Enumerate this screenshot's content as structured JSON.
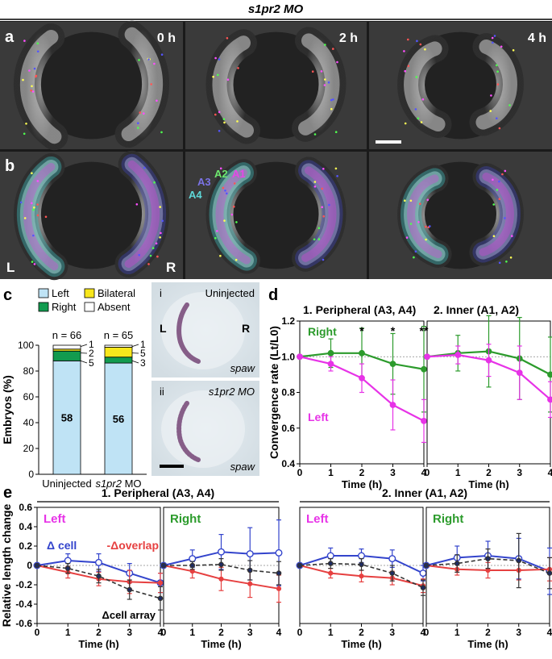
{
  "figure_title": "s1pr2 MO",
  "panel_labels": [
    "a",
    "b",
    "c",
    "d",
    "e"
  ],
  "micrographs": {
    "time_labels": [
      "0 h",
      "2 h",
      "4 h"
    ],
    "cell_group_labels": [
      "A3",
      "A2",
      "A1",
      "A4"
    ],
    "side_labels": [
      "L",
      "R"
    ]
  },
  "panel_c_legend": [
    "Left",
    "Bilateral",
    "Right",
    "Absent"
  ],
  "panel_c_insets": {
    "top_label": "i",
    "top_condition": "Uninjected",
    "bottom_label": "ii",
    "bottom_condition": "s1pr2 MO",
    "gene": "spaw",
    "side_left": "L",
    "side_right": "R"
  },
  "colors": {
    "left": "#e733e7",
    "right": "#2c9b2c",
    "delta_cell": "#3344cc",
    "delta_overlap": "#e64040",
    "delta_cell_array": "#333333",
    "bar_left": "#bfe3f5",
    "bar_right": "#129b4f",
    "bar_bilateral": "#f8e71c",
    "bar_absent": "#ffffff"
  },
  "chart_data": [
    {
      "id": "c",
      "type": "bar",
      "categories": [
        "Uninjected",
        "s1pr2 MO"
      ],
      "n_labels": [
        "n = 66",
        "n = 65"
      ],
      "ylabel": "Embryos (%)",
      "ylim": [
        0,
        100
      ],
      "yticks": [
        "0",
        "20",
        "40",
        "60",
        "80",
        "100"
      ],
      "series": [
        {
          "name": "Left",
          "counts": [
            58,
            56
          ],
          "values": [
            87.9,
            86.2
          ]
        },
        {
          "name": "Right",
          "counts": [
            5,
            3
          ],
          "values": [
            7.6,
            4.6
          ]
        },
        {
          "name": "Bilateral",
          "counts": [
            1,
            5
          ],
          "values": [
            1.5,
            7.7
          ]
        },
        {
          "name": "Absent",
          "counts": [
            2,
            1
          ],
          "values": [
            3.0,
            1.5
          ]
        }
      ],
      "annotations": [
        [
          "1",
          "2",
          "5"
        ],
        [
          "1",
          "5",
          "3"
        ]
      ]
    },
    {
      "id": "d",
      "type": "line",
      "ylabel": "Convergence rate (Lt/L0)",
      "xlabel": "Time (h)",
      "ylim": [
        0.4,
        1.2
      ],
      "yticks": [
        "0.4",
        "0.6",
        "0.8",
        "1.0",
        "1.2"
      ],
      "xticks": [
        "0",
        "1",
        "2",
        "3",
        "4"
      ],
      "subplots": [
        {
          "title": "1. Peripheral (A3, A4)",
          "x": [
            0,
            1,
            2,
            3,
            4
          ],
          "series": [
            {
              "name": "Right",
              "values": [
                1.0,
                1.02,
                1.02,
                0.96,
                0.93
              ],
              "err": [
                0,
                0.08,
                0.14,
                0.17,
                0.24
              ]
            },
            {
              "name": "Left",
              "values": [
                1.0,
                0.96,
                0.88,
                0.73,
                0.64
              ],
              "err": [
                0,
                0.04,
                0.08,
                0.14,
                0.12
              ]
            }
          ],
          "significance": [
            "",
            "",
            "*",
            "*",
            "**"
          ]
        },
        {
          "title": "2. Inner (A1, A2)",
          "x": [
            0,
            1,
            2,
            3,
            4
          ],
          "series": [
            {
              "name": "Right",
              "values": [
                1.0,
                1.02,
                1.03,
                0.99,
                0.9
              ],
              "err": [
                0,
                0.1,
                0.2,
                0.23,
                0.21
              ]
            },
            {
              "name": "Left",
              "values": [
                1.0,
                1.01,
                0.98,
                0.91,
                0.76
              ],
              "err": [
                0,
                0.05,
                0.09,
                0.15,
                0.1
              ]
            }
          ]
        }
      ]
    },
    {
      "id": "e",
      "type": "line",
      "ylabel": "Relative length change",
      "xlabel": "Time (h)",
      "ylim": [
        -0.6,
        0.6
      ],
      "yticks": [
        "-0.6",
        "-0.4",
        "-0.2",
        "0",
        "0.2",
        "0.4",
        "0.6"
      ],
      "xticks": [
        "0",
        "1",
        "2",
        "3",
        "4"
      ],
      "groups": [
        "1. Peripheral (A3, A4)",
        "2. Inner (A1, A2)"
      ],
      "series_names": [
        "Δ cell",
        "-Δoverlap",
        "Δcell array"
      ],
      "subplots": [
        {
          "label": "Left",
          "side": "left",
          "x": [
            0,
            1,
            2,
            3,
            4
          ],
          "series": [
            {
              "name": "Δ cell",
              "values": [
                0,
                0.05,
                0.03,
                -0.08,
                -0.18
              ],
              "err": [
                0,
                0.07,
                0.09,
                0.1,
                0.1
              ]
            },
            {
              "name": "-Δoverlap",
              "values": [
                0,
                -0.07,
                -0.14,
                -0.17,
                -0.18
              ],
              "err": [
                0,
                0.06,
                0.07,
                0.12,
                0.1
              ]
            },
            {
              "name": "Δcell array",
              "values": [
                0,
                -0.03,
                -0.11,
                -0.25,
                -0.34
              ],
              "err": [
                0,
                0.05,
                0.07,
                0.1,
                0.12
              ]
            }
          ]
        },
        {
          "label": "Right",
          "side": "right",
          "x": [
            0,
            1,
            2,
            3,
            4
          ],
          "series": [
            {
              "name": "Δ cell",
              "values": [
                0,
                0.07,
                0.14,
                0.12,
                0.13
              ],
              "err": [
                0,
                0.09,
                0.18,
                0.27,
                0.34
              ]
            },
            {
              "name": "-Δoverlap",
              "values": [
                0,
                -0.06,
                -0.14,
                -0.19,
                -0.24
              ],
              "err": [
                0,
                0.07,
                0.12,
                0.14,
                0.14
              ]
            },
            {
              "name": "Δcell array",
              "values": [
                0,
                0.0,
                0.01,
                -0.05,
                -0.08
              ],
              "err": [
                0,
                0.04,
                0.06,
                0.1,
                0.12
              ]
            }
          ]
        },
        {
          "label": "Left",
          "side": "left",
          "x": [
            0,
            1,
            2,
            3,
            4
          ],
          "series": [
            {
              "name": "Δ cell",
              "values": [
                0,
                0.1,
                0.1,
                0.07,
                -0.08
              ],
              "err": [
                0,
                0.08,
                0.07,
                0.09,
                0.08
              ]
            },
            {
              "name": "-Δoverlap",
              "values": [
                0,
                -0.08,
                -0.11,
                -0.13,
                -0.21
              ],
              "err": [
                0,
                0.05,
                0.06,
                0.07,
                0.07
              ]
            },
            {
              "name": "Δcell array",
              "values": [
                0,
                0.02,
                0.01,
                -0.08,
                -0.23
              ],
              "err": [
                0,
                0.05,
                0.06,
                0.08,
                0.08
              ]
            }
          ]
        },
        {
          "label": "Right",
          "side": "right",
          "x": [
            0,
            1,
            2,
            3,
            4
          ],
          "series": [
            {
              "name": "Δ cell",
              "values": [
                0,
                0.08,
                0.1,
                0.07,
                -0.06
              ],
              "err": [
                0,
                0.12,
                0.15,
                0.21,
                0.24
              ]
            },
            {
              "name": "-Δoverlap",
              "values": [
                0,
                -0.04,
                -0.05,
                -0.05,
                -0.04
              ],
              "err": [
                0,
                0.06,
                0.08,
                0.1,
                0.12
              ]
            },
            {
              "name": "Δcell array",
              "values": [
                0,
                0.02,
                0.07,
                0.05,
                -0.08
              ],
              "err": [
                0,
                0.09,
                0.1,
                0.28,
                0.16
              ]
            }
          ]
        }
      ]
    }
  ]
}
